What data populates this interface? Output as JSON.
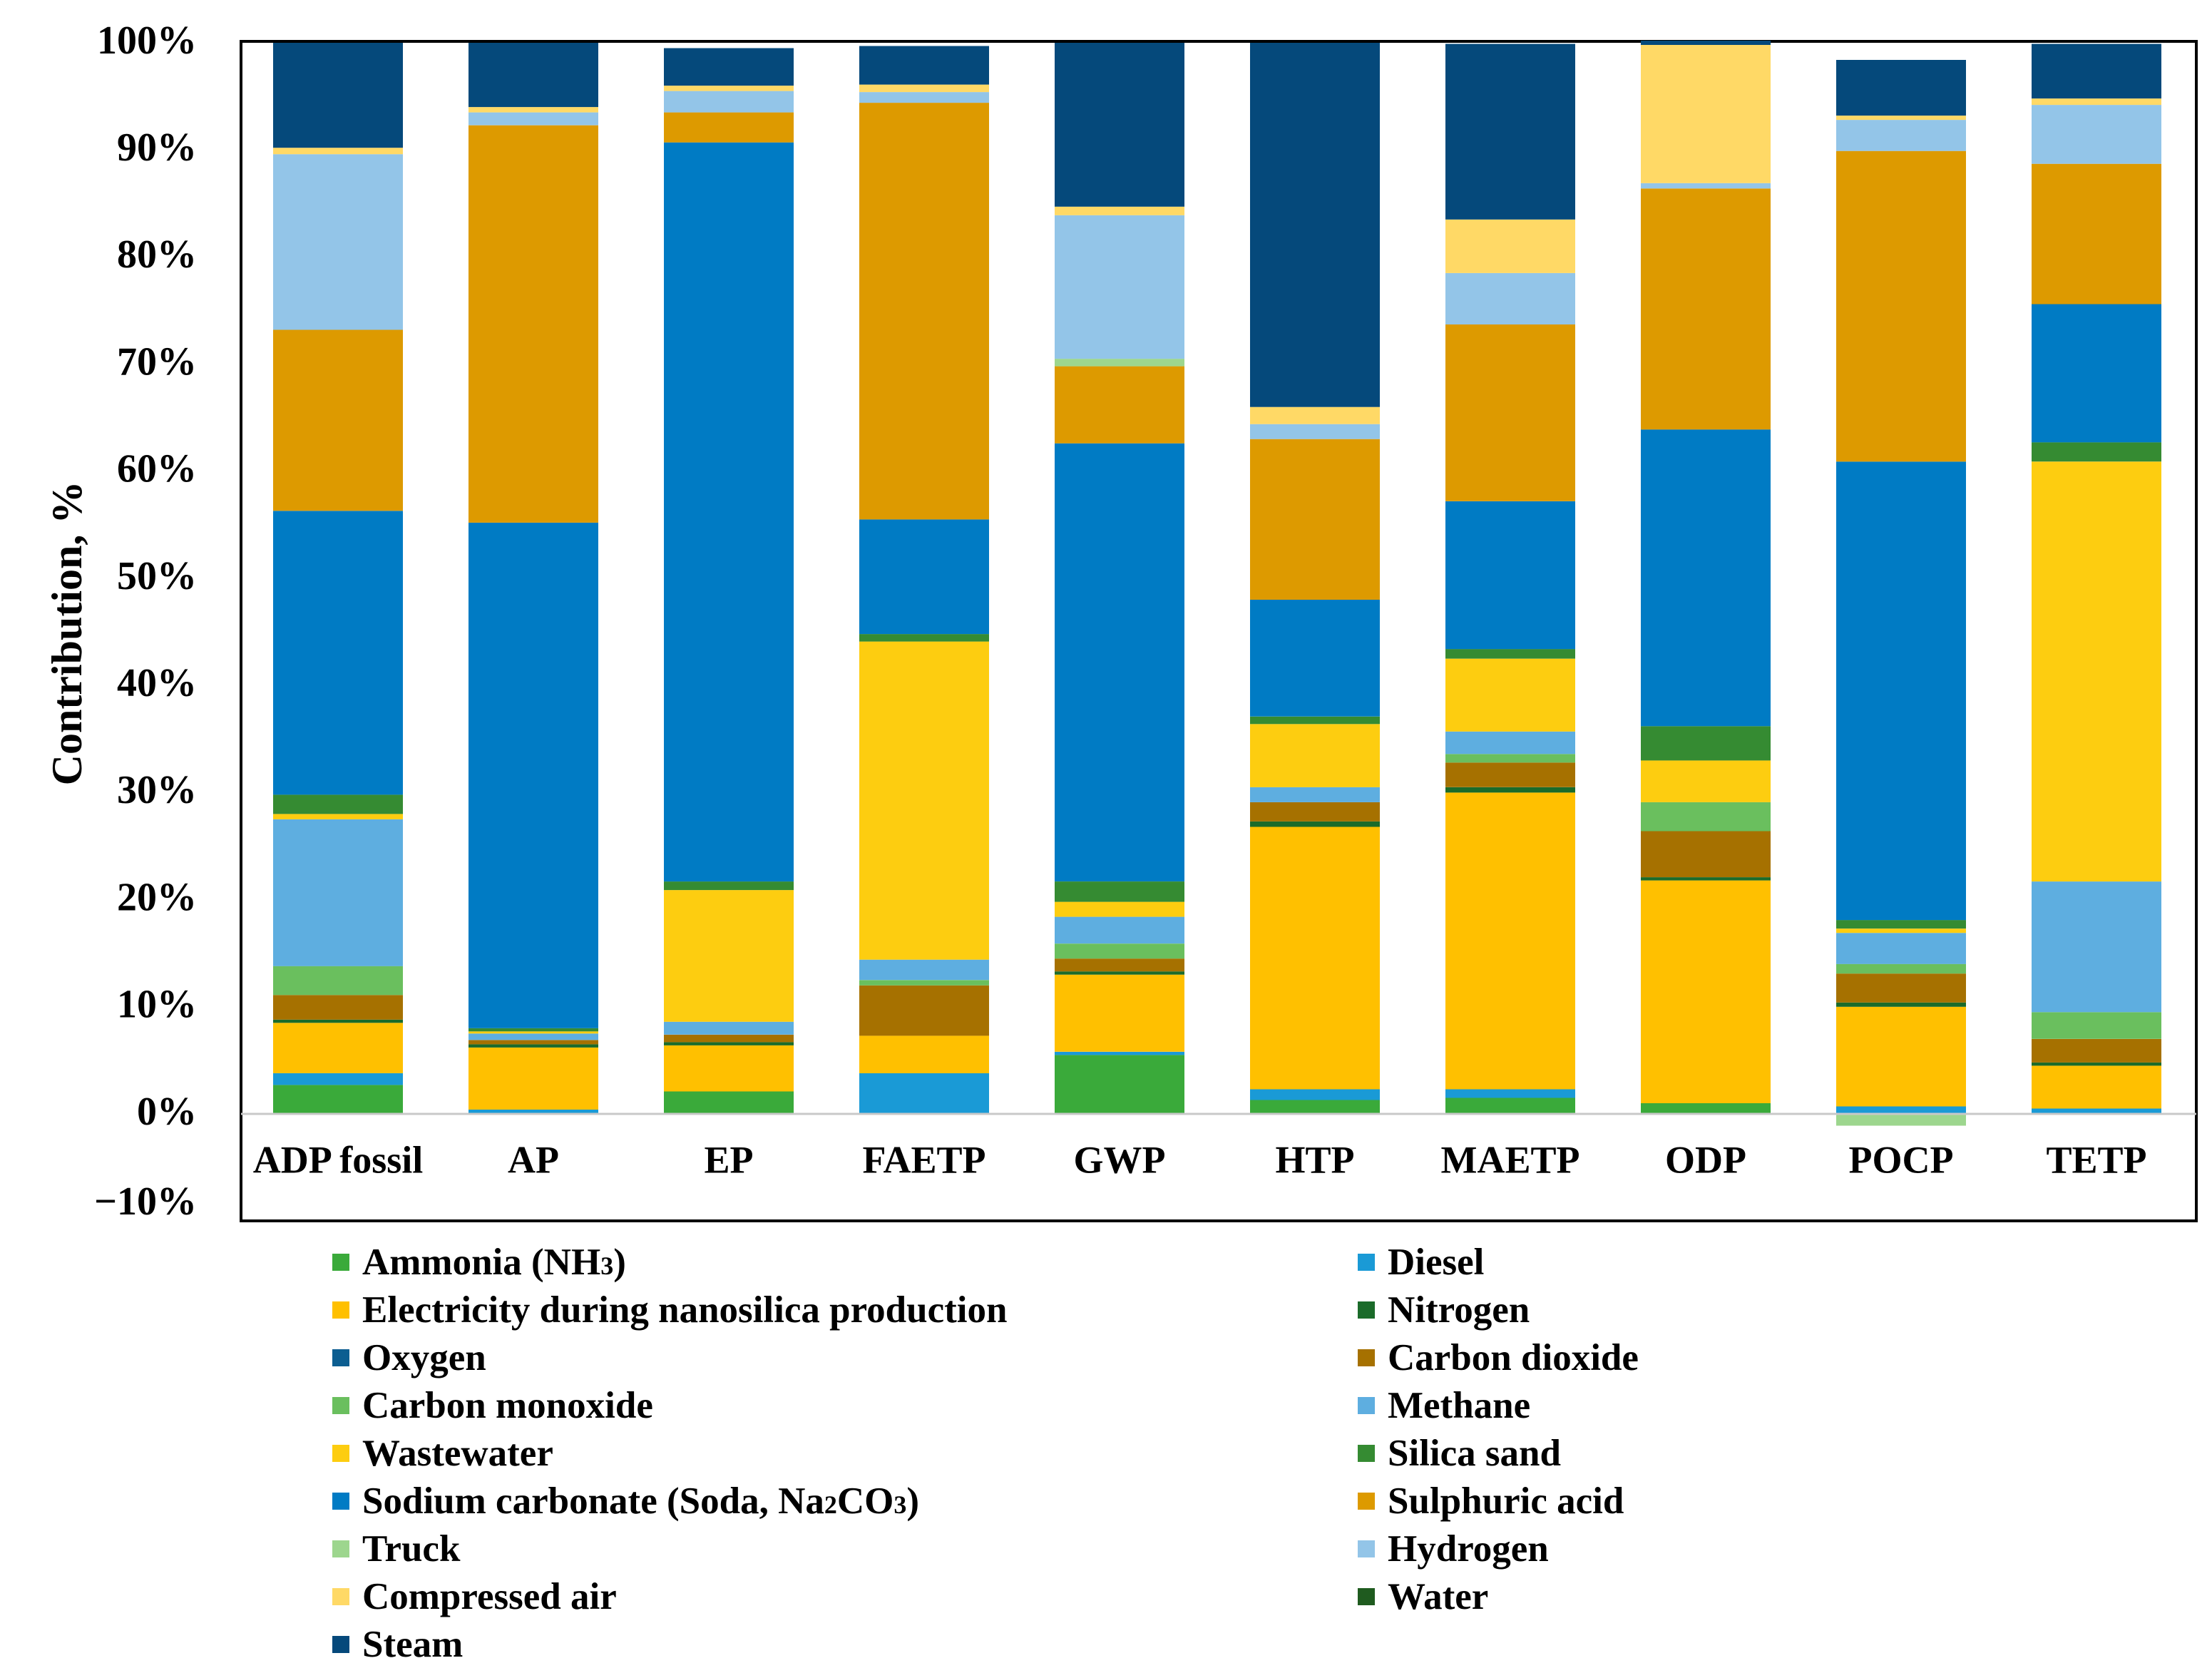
{
  "chart_data": {
    "type": "stacked-bar",
    "title": "",
    "xlabel": "",
    "ylabel": "Contribution, %",
    "ylim": [
      -10,
      100
    ],
    "grid": false,
    "legend_position": "bottom",
    "yticks": [
      "100%",
      "90%",
      "80%",
      "70%",
      "60%",
      "50%",
      "40%",
      "30%",
      "20%",
      "10%",
      "0%",
      "−10%"
    ],
    "categories": [
      "ADP fossil",
      "AP",
      "EP",
      "FAETP",
      "GWP",
      "HTP",
      "MAETP",
      "ODP",
      "POCP",
      "TETP"
    ],
    "series": [
      {
        "name": "Ammonia (NH3)",
        "label_main": "Ammonia (NH",
        "label_sub": "3",
        "label_tail": ")",
        "color": "#3aaa3a",
        "values": [
          2.7,
          0,
          2.1,
          0,
          5.5,
          1.3,
          1.5,
          1.0,
          0,
          0
        ]
      },
      {
        "name": "Diesel",
        "label_main": "Diesel",
        "color": "#1a9ad6",
        "values": [
          1.1,
          0.4,
          0,
          3.8,
          0.3,
          1.0,
          0.8,
          0,
          0.7,
          0.5
        ]
      },
      {
        "name": "Electricity during nanosilica production",
        "label_main": "Electricity during nanosilica production",
        "color": "#ffc000",
        "values": [
          4.7,
          5.8,
          4.3,
          3.5,
          7.2,
          24.5,
          27.7,
          20.8,
          9.3,
          4.0
        ]
      },
      {
        "name": "Nitrogen",
        "label_main": "Nitrogen",
        "color": "#1b6b2a",
        "values": [
          0.3,
          0.3,
          0.3,
          0,
          0.3,
          0.5,
          0.5,
          0.3,
          0.4,
          0.3
        ]
      },
      {
        "name": "Oxygen",
        "label_main": "Oxygen",
        "color": "#0c5e91",
        "values": [
          0,
          0,
          0,
          0,
          0,
          0,
          0,
          0,
          0,
          0
        ]
      },
      {
        "name": "Carbon dioxide",
        "label_main": "Carbon dioxide",
        "color": "#a67100",
        "values": [
          2.3,
          0.4,
          0.7,
          4.7,
          1.2,
          1.8,
          2.3,
          4.3,
          2.7,
          2.2
        ]
      },
      {
        "name": "Carbon monoxide",
        "label_main": "Carbon monoxide",
        "color": "#6abf5e",
        "values": [
          2.7,
          0,
          0,
          0.5,
          1.4,
          0,
          0.8,
          2.7,
          0.9,
          2.5
        ]
      },
      {
        "name": "Methane",
        "label_main": "Methane",
        "color": "#5eaee0",
        "values": [
          13.7,
          0.6,
          1.2,
          1.9,
          2.5,
          1.4,
          2.1,
          0,
          2.9,
          12.2
        ]
      },
      {
        "name": "Wastewater",
        "label_main": "Wastewater",
        "color": "#fdcd10",
        "values": [
          0.5,
          0.2,
          12.3,
          29.7,
          1.4,
          5.9,
          6.8,
          3.9,
          0.4,
          39.2
        ]
      },
      {
        "name": "Silica sand",
        "label_main": "Silica sand",
        "color": "#358b32",
        "values": [
          1.8,
          0.3,
          0.8,
          0.7,
          1.9,
          0.7,
          0.9,
          3.2,
          0.8,
          1.8
        ]
      },
      {
        "name": "Sodium carbonate (Soda, Na2CO3)",
        "label_main": "Sodium carbonate (Soda, Na",
        "label_sub": "2",
        "label_tail": "CO",
        "label_sub2": "3",
        "label_tail2": ")",
        "color": "#007bc4",
        "values": [
          26.5,
          47.2,
          69.0,
          10.7,
          40.9,
          10.9,
          13.8,
          27.7,
          42.8,
          12.9
        ]
      },
      {
        "name": "Sulphuric acid",
        "label_main": "Sulphuric acid",
        "color": "#dd9a00",
        "values": [
          16.9,
          37.1,
          2.8,
          38.9,
          7.2,
          15.0,
          16.5,
          22.5,
          29.0,
          13.1
        ]
      },
      {
        "name": "Truck",
        "label_main": "Truck",
        "color": "#9dd68e",
        "values": [
          0,
          0,
          0,
          0,
          0.7,
          0,
          0,
          0,
          -1.1,
          0
        ]
      },
      {
        "name": "Hydrogen",
        "label_main": "Hydrogen",
        "color": "#93c5e8",
        "values": [
          16.4,
          1.2,
          2.0,
          1.0,
          13.4,
          1.4,
          4.8,
          0.5,
          2.9,
          5.5
        ]
      },
      {
        "name": "Compressed air",
        "label_main": "Compressed air",
        "color": "#ffd966",
        "values": [
          0.6,
          0.5,
          0.5,
          0.7,
          0.8,
          1.6,
          5.0,
          12.9,
          0.4,
          0.6
        ]
      },
      {
        "name": "Water",
        "label_main": "Water",
        "color": "#1f5b1f",
        "values": [
          0,
          0,
          0,
          0,
          0,
          0,
          0,
          0,
          0,
          0
        ]
      },
      {
        "name": "Steam",
        "label_main": "Steam",
        "color": "#05497b",
        "values": [
          9.8,
          6.0,
          3.5,
          3.6,
          15.3,
          34.0,
          16.4,
          0.4,
          5.2,
          5.1
        ]
      }
    ]
  }
}
